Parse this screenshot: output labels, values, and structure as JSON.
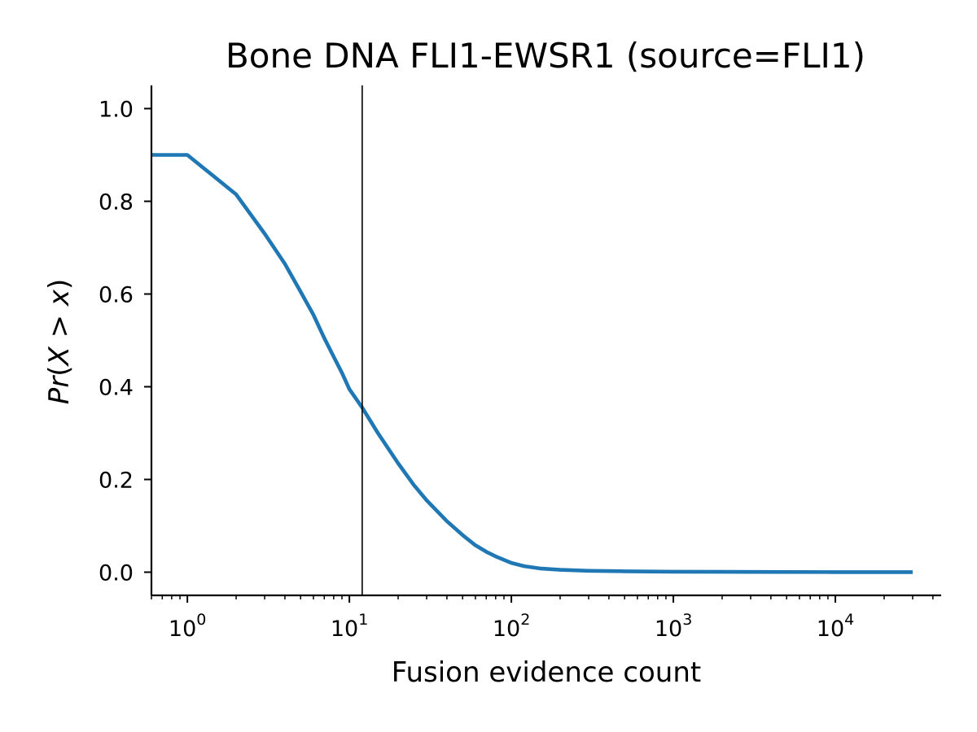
{
  "chart_data": {
    "type": "line",
    "title": "Bone DNA FLI1-EWSR1 (source=FLI1)",
    "xlabel": "Fusion evidence count",
    "ylabel_parts": [
      "Pr",
      "(",
      "X",
      " > ",
      "x",
      ")"
    ],
    "xscale": "log",
    "xlim": [
      0.6,
      45000
    ],
    "ylim": [
      -0.05,
      1.05
    ],
    "x_ticks": [
      {
        "base": "10",
        "exp": "0",
        "value": 1
      },
      {
        "base": "10",
        "exp": "1",
        "value": 10
      },
      {
        "base": "10",
        "exp": "2",
        "value": 100
      },
      {
        "base": "10",
        "exp": "3",
        "value": 1000
      },
      {
        "base": "10",
        "exp": "4",
        "value": 10000
      }
    ],
    "y_ticks": [
      {
        "label": "0.0",
        "value": 0.0
      },
      {
        "label": "0.2",
        "value": 0.2
      },
      {
        "label": "0.4",
        "value": 0.4
      },
      {
        "label": "0.6",
        "value": 0.6
      },
      {
        "label": "0.8",
        "value": 0.8
      },
      {
        "label": "1.0",
        "value": 1.0
      }
    ],
    "grid": false,
    "vline": {
      "x": 12
    },
    "series": [
      {
        "color": "#1f77b4",
        "x": [
          0.6,
          1,
          2,
          3,
          4,
          5,
          6,
          7,
          8,
          9,
          10,
          12,
          15,
          20,
          25,
          30,
          40,
          50,
          60,
          70,
          80,
          100,
          120,
          150,
          200,
          300,
          500,
          1000,
          3000,
          10000,
          30000
        ],
        "y": [
          0.9,
          0.9,
          0.815,
          0.73,
          0.665,
          0.605,
          0.555,
          0.505,
          0.465,
          0.43,
          0.395,
          0.355,
          0.3,
          0.235,
          0.188,
          0.155,
          0.11,
          0.08,
          0.058,
          0.044,
          0.034,
          0.02,
          0.013,
          0.008,
          0.005,
          0.003,
          0.002,
          0.001,
          0.0005,
          0.0002,
          0.0001
        ]
      }
    ]
  }
}
